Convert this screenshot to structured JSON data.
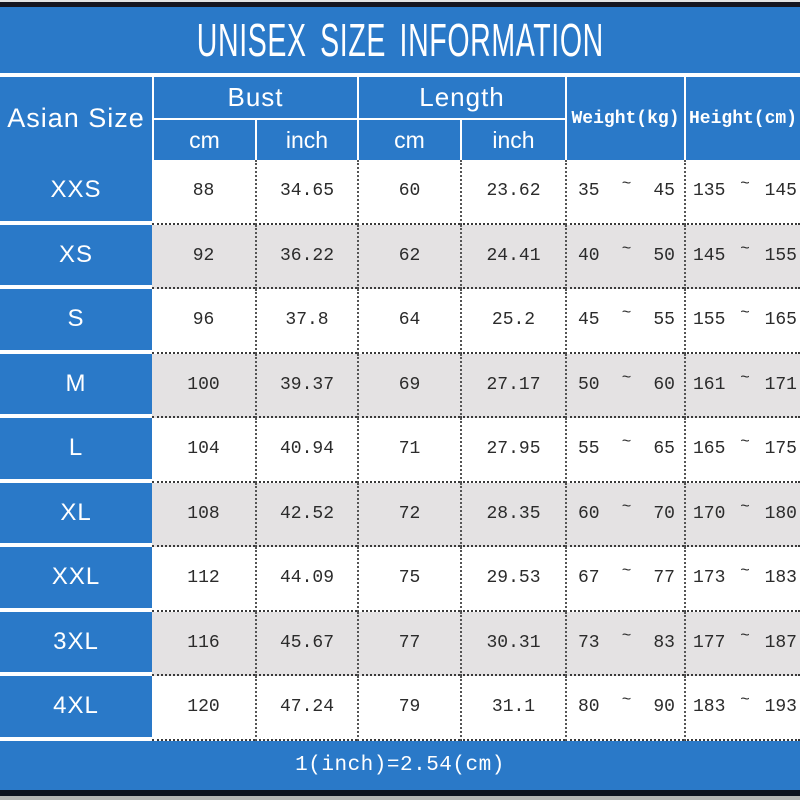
{
  "chart_data": {
    "type": "table",
    "title": "UNISEX SIZE INFORMATION",
    "footnote": "1(inch)=2.54(cm)",
    "range_separator": "~",
    "header": {
      "size_label": "Asian Size",
      "bust_label": "Bust",
      "length_label": "Length",
      "cm_label": "cm",
      "inch_label": "inch",
      "weight_label": "Weight(kg)",
      "height_label": "Height(cm)"
    },
    "rows": [
      {
        "size": "XXS",
        "bust_cm": "88",
        "bust_inch": "34.65",
        "length_cm": "60",
        "length_inch": "23.62",
        "weight_min": "35",
        "weight_max": "45",
        "height_min": "135",
        "height_max": "145"
      },
      {
        "size": "XS",
        "bust_cm": "92",
        "bust_inch": "36.22",
        "length_cm": "62",
        "length_inch": "24.41",
        "weight_min": "40",
        "weight_max": "50",
        "height_min": "145",
        "height_max": "155"
      },
      {
        "size": "S",
        "bust_cm": "96",
        "bust_inch": "37.8",
        "length_cm": "64",
        "length_inch": "25.2",
        "weight_min": "45",
        "weight_max": "55",
        "height_min": "155",
        "height_max": "165"
      },
      {
        "size": "M",
        "bust_cm": "100",
        "bust_inch": "39.37",
        "length_cm": "69",
        "length_inch": "27.17",
        "weight_min": "50",
        "weight_max": "60",
        "height_min": "161",
        "height_max": "171"
      },
      {
        "size": "L",
        "bust_cm": "104",
        "bust_inch": "40.94",
        "length_cm": "71",
        "length_inch": "27.95",
        "weight_min": "55",
        "weight_max": "65",
        "height_min": "165",
        "height_max": "175"
      },
      {
        "size": "XL",
        "bust_cm": "108",
        "bust_inch": "42.52",
        "length_cm": "72",
        "length_inch": "28.35",
        "weight_min": "60",
        "weight_max": "70",
        "height_min": "170",
        "height_max": "180"
      },
      {
        "size": "XXL",
        "bust_cm": "112",
        "bust_inch": "44.09",
        "length_cm": "75",
        "length_inch": "29.53",
        "weight_min": "67",
        "weight_max": "77",
        "height_min": "173",
        "height_max": "183"
      },
      {
        "size": "3XL",
        "bust_cm": "116",
        "bust_inch": "45.67",
        "length_cm": "77",
        "length_inch": "30.31",
        "weight_min": "73",
        "weight_max": "83",
        "height_min": "177",
        "height_max": "187"
      },
      {
        "size": "4XL",
        "bust_cm": "120",
        "bust_inch": "47.24",
        "length_cm": "79",
        "length_inch": "31.1",
        "weight_min": "80",
        "weight_max": "90",
        "height_min": "183",
        "height_max": "193"
      }
    ]
  },
  "colors": {
    "blue": "#2a79c8",
    "row_alt_gray": "#e4e2e3",
    "text_dark": "#2b2b2b",
    "trim_dark": "#15151f",
    "trim_gray": "#b5b5b5"
  }
}
